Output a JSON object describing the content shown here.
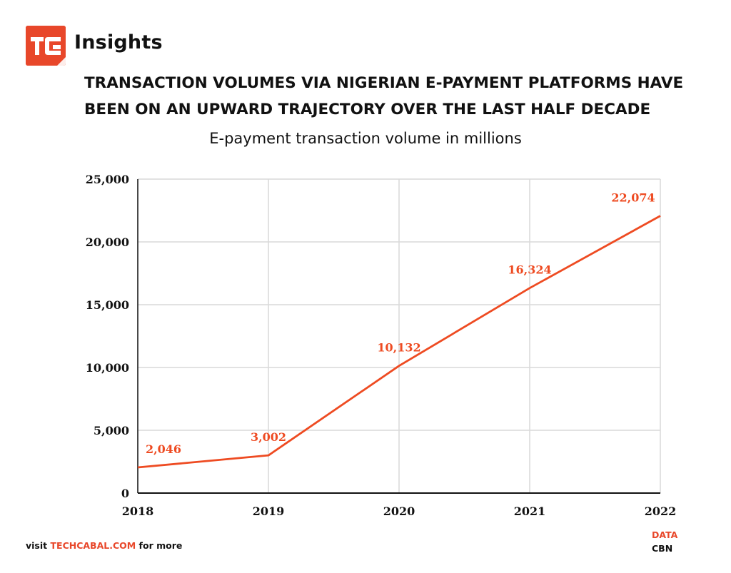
{
  "brand": {
    "logo_text": "TC",
    "name": "Insights"
  },
  "headline": "TRANSACTION VOLUMES VIA  NIGERIAN E-PAYMENT PLATFORMS HAVE\nBEEN ON AN UPWARD TRAJECTORY OVER THE LAST HALF DECADE",
  "chart_data": {
    "type": "line",
    "title": "E-payment transaction volume in millions",
    "categories": [
      "2018",
      "2019",
      "2020",
      "2021",
      "2022"
    ],
    "series": [
      {
        "values": [
          2046,
          3002,
          10132,
          16324,
          22074
        ],
        "color": "#ee4b22"
      }
    ],
    "data_labels": [
      "2,046",
      "3,002",
      "10,132",
      "16,324",
      "22,074"
    ],
    "ylim": [
      0,
      25000
    ],
    "yticks": [
      0,
      5000,
      10000,
      15000,
      20000,
      25000
    ],
    "ytick_labels": [
      "0",
      "5,000",
      "10,000",
      "15,000",
      "20,000",
      "25,000"
    ],
    "xlabel": "",
    "ylabel": "",
    "grid": true,
    "legend": "none"
  },
  "footer": {
    "prefix": "visit ",
    "link": "TECHCABAL.COM",
    "suffix": " for more"
  },
  "source": {
    "label": "DATA",
    "value": "CBN"
  },
  "colors": {
    "accent": "#e8472a",
    "line": "#ee4b22",
    "grid": "#d9d9d9",
    "text": "#111111"
  }
}
